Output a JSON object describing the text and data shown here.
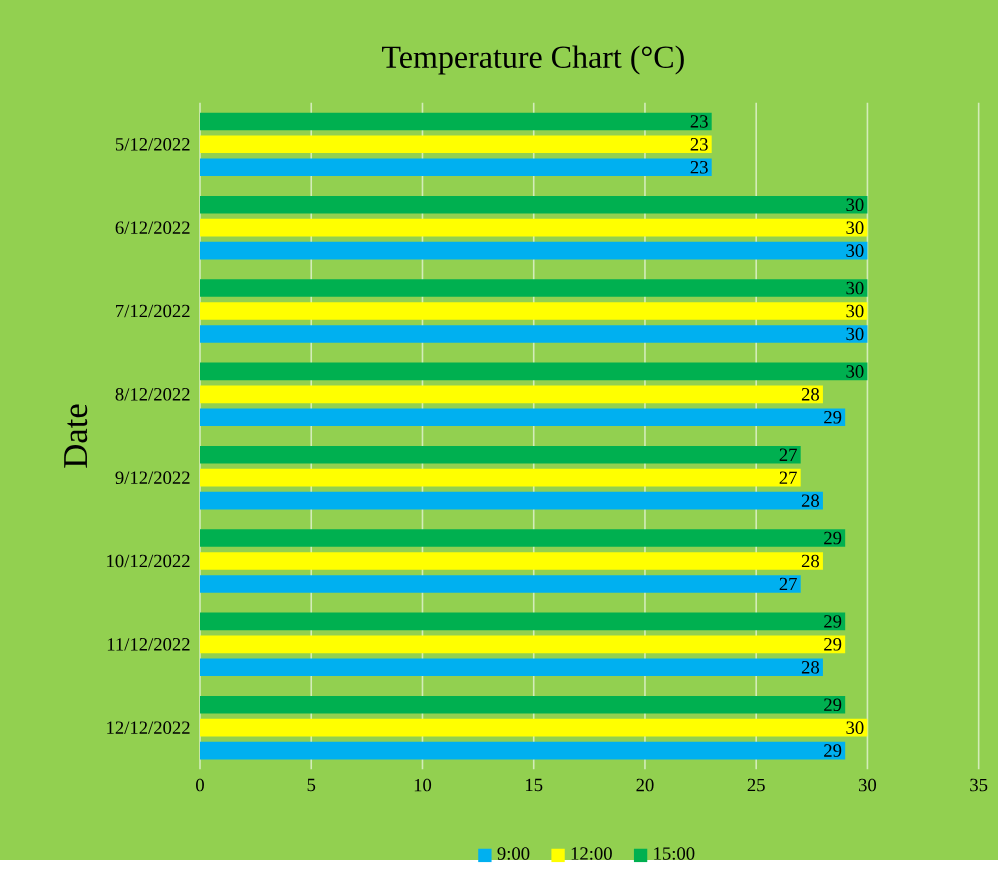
{
  "chart_data": {
    "type": "bar",
    "orientation": "horizontal",
    "title": "Temperature Chart (°C)",
    "ylabel": "Date",
    "categories": [
      "5/12/2022",
      "6/12/2022",
      "7/12/2022",
      "8/12/2022",
      "9/12/2022",
      "10/12/2022",
      "11/12/2022",
      "12/12/2022"
    ],
    "series": [
      {
        "name": "9:00",
        "color": "#00b0f0",
        "values": [
          23,
          30,
          30,
          29,
          28,
          27,
          28,
          29
        ]
      },
      {
        "name": "12:00",
        "color": "#ffff00",
        "values": [
          23,
          30,
          30,
          28,
          27,
          28,
          29,
          30
        ]
      },
      {
        "name": "15:00",
        "color": "#00b050",
        "values": [
          23,
          30,
          30,
          30,
          27,
          29,
          29,
          29
        ]
      }
    ],
    "xlim": [
      0,
      35
    ],
    "xticks": [
      0,
      5,
      10,
      15,
      20,
      25,
      30,
      35
    ],
    "grid": "x",
    "legend": "bottom",
    "data_labels": true
  }
}
